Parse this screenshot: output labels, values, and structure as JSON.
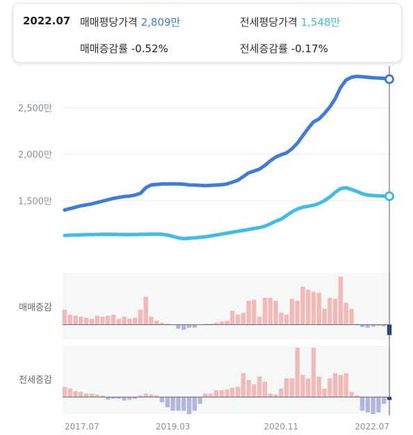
{
  "tooltip": {
    "date": "2022.07",
    "sale_avg_label": "매매평당가격",
    "sale_avg_value": "2,809만",
    "jeonse_avg_label": "전세평당가격",
    "jeonse_avg_value": "1,548만",
    "sale_change_label": "매매증감률",
    "sale_change_value": "-0.52%",
    "jeonse_change_label": "전세증감률",
    "jeonse_change_value": "-0.17%"
  },
  "colors": {
    "sale_line": "#3f7bd9",
    "jeonse_line": "#3fbce8",
    "bar_positive": "#f2b9b9",
    "bar_negative": "#b3b6db",
    "panel_bg": "#f6f8f8",
    "crosshair": "#555555",
    "current_marker": "#1f3a8a"
  },
  "chart_data": {
    "type": "line",
    "x_ticks": [
      "2017.07",
      "2019.03",
      "2020.11",
      "2022.07"
    ],
    "y_ticks": [
      1500,
      2000,
      2500
    ],
    "y_tick_labels": [
      "1,500만",
      "2,000만",
      "2,500만"
    ],
    "ylim": [
      700,
      2950
    ],
    "start": "2017.07",
    "end": "2022.07",
    "series": [
      {
        "name": "매매평당가격",
        "values": [
          1400,
          1415,
          1430,
          1445,
          1455,
          1465,
          1480,
          1495,
          1510,
          1525,
          1535,
          1545,
          1550,
          1560,
          1580,
          1640,
          1670,
          1675,
          1680,
          1680,
          1682,
          1680,
          1678,
          1670,
          1668,
          1665,
          1662,
          1665,
          1668,
          1672,
          1680,
          1700,
          1720,
          1760,
          1800,
          1820,
          1840,
          1880,
          1930,
          1970,
          1995,
          2015,
          2060,
          2120,
          2200,
          2280,
          2350,
          2380,
          2440,
          2510,
          2600,
          2720,
          2800,
          2830,
          2840,
          2835,
          2830,
          2825,
          2822,
          2818,
          2809
        ]
      },
      {
        "name": "전세평당가격",
        "values": [
          1125,
          1128,
          1130,
          1132,
          1134,
          1135,
          1136,
          1137,
          1138,
          1137,
          1136,
          1135,
          1135,
          1136,
          1137,
          1138,
          1139,
          1140,
          1138,
          1130,
          1115,
          1100,
          1090,
          1095,
          1100,
          1105,
          1110,
          1120,
          1130,
          1140,
          1150,
          1160,
          1170,
          1180,
          1190,
          1200,
          1210,
          1225,
          1250,
          1280,
          1300,
          1340,
          1380,
          1410,
          1430,
          1440,
          1450,
          1470,
          1500,
          1540,
          1590,
          1630,
          1640,
          1620,
          1600,
          1575,
          1560,
          1555,
          1552,
          1550,
          1548
        ]
      }
    ],
    "bar_panels": [
      {
        "label": "매매증감",
        "ylim": [
          -0.75,
          2.6
        ],
        "values": [
          0.75,
          0.5,
          0.45,
          0.4,
          0.35,
          0.3,
          0.45,
          0.4,
          0.45,
          0.5,
          0.3,
          0.4,
          0.3,
          0.35,
          0.75,
          1.4,
          0.4,
          0.2,
          0.1,
          0.05,
          0.0,
          -0.2,
          -0.25,
          -0.15,
          -0.15,
          -0.02,
          0.05,
          0.05,
          0.1,
          0.15,
          0.2,
          0.7,
          0.5,
          0.6,
          1.2,
          1.25,
          0.4,
          1.35,
          1.35,
          1.2,
          0.6,
          0.5,
          1.3,
          1.2,
          1.9,
          1.75,
          1.65,
          1.6,
          0.8,
          1.35,
          1.3,
          2.4,
          1.1,
          0.8,
          0.05,
          -0.12,
          -0.15,
          -0.1,
          -0.05,
          -0.08,
          -0.52
        ]
      },
      {
        "label": "전세증감",
        "ylim": [
          -1.0,
          3.0
        ],
        "values": [
          0.6,
          0.5,
          0.35,
          0.3,
          0.2,
          0.2,
          0.15,
          0.1,
          -0.15,
          -0.1,
          -0.1,
          -0.2,
          -0.15,
          -0.1,
          0.1,
          0.2,
          0.15,
          0.1,
          -0.3,
          -0.6,
          -0.8,
          -0.8,
          -0.8,
          -1.0,
          -0.8,
          -0.4,
          0.2,
          0.2,
          0.4,
          0.4,
          0.45,
          0.55,
          0.6,
          1.4,
          1.0,
          0.75,
          1.2,
          0.9,
          0.2,
          0.15,
          0.5,
          1.1,
          1.1,
          2.9,
          1.3,
          1.1,
          2.9,
          1.2,
          0.5,
          1.1,
          1.4,
          1.3,
          1.4,
          0.3,
          0.1,
          -0.8,
          -0.9,
          -1.0,
          -0.9,
          -0.4,
          -0.17
        ]
      }
    ]
  }
}
